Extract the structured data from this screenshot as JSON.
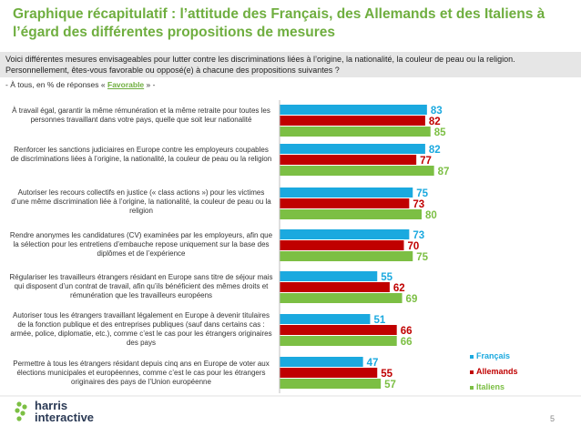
{
  "title": "Graphique récapitulatif : l’attitude des Français, des Allemands et des Italiens à\nl’égard des différentes propositions de mesures",
  "intro": "Voici différentes mesures envisageables pour lutter contre les discriminations liées à l’origine, la nationalité, la couleur de peau ou la religion. Personnellement, êtes-vous favorable ou opposé(e) à chacune des propositions suivantes ?",
  "basis_prefix": "- À tous, en % de réponses «",
  "basis_highlight": "Favorable",
  "basis_suffix": "» -",
  "logo_line1": "harris",
  "logo_line2": "interactive",
  "page_number": "5",
  "colors": {
    "france": "#1ba9df",
    "germany": "#c00000",
    "italy": "#7cbf44",
    "title": "#6fae3f"
  },
  "chart_data": {
    "type": "bar",
    "orientation": "horizontal",
    "xlim": [
      0,
      100
    ],
    "categories": [
      "À travail égal, garantir la même rémunération et la même retraite pour toutes les personnes travaillant dans votre pays, quelle que soit leur nationalité",
      "Renforcer les sanctions judiciaires en Europe contre les employeurs coupables de discriminations liées à l’origine, la nationalité, la couleur de peau ou la religion",
      "Autoriser les recours collectifs en justice (« class actions ») pour les victimes d’une même discrimination liée à l’origine, la nationalité, la couleur de peau ou la religion",
      "Rendre anonymes les candidatures (CV) examinées par les employeurs, afin que la sélection pour les entretiens d’embauche repose uniquement sur la base des diplômes et de l’expérience",
      "Régulariser les travailleurs étrangers résidant en Europe sans titre de séjour mais qui disposent d’un contrat de travail, afin qu’ils bénéficient des mêmes droits et rémunération que les travailleurs européens",
      "Autoriser tous les étrangers travaillant légalement en Europe à devenir titulaires de la fonction publique et des entreprises publiques (sauf dans certains cas : armée, police, diplomatie, etc.), comme c’est le cas pour les étrangers originaires des pays",
      "Permettre à tous les étrangers résidant depuis cinq ans en Europe de voter aux élections municipales et européennes, comme c’est le cas pour les étrangers originaires des pays de l’Union européenne"
    ],
    "series": [
      {
        "name": "Français",
        "values": [
          83,
          82,
          75,
          73,
          55,
          51,
          47
        ]
      },
      {
        "name": "Allemands",
        "values": [
          82,
          77,
          73,
          70,
          62,
          66,
          55
        ]
      },
      {
        "name": "Italiens",
        "values": [
          85,
          87,
          80,
          75,
          69,
          66,
          57
        ]
      }
    ],
    "legend": "bottom-right"
  }
}
